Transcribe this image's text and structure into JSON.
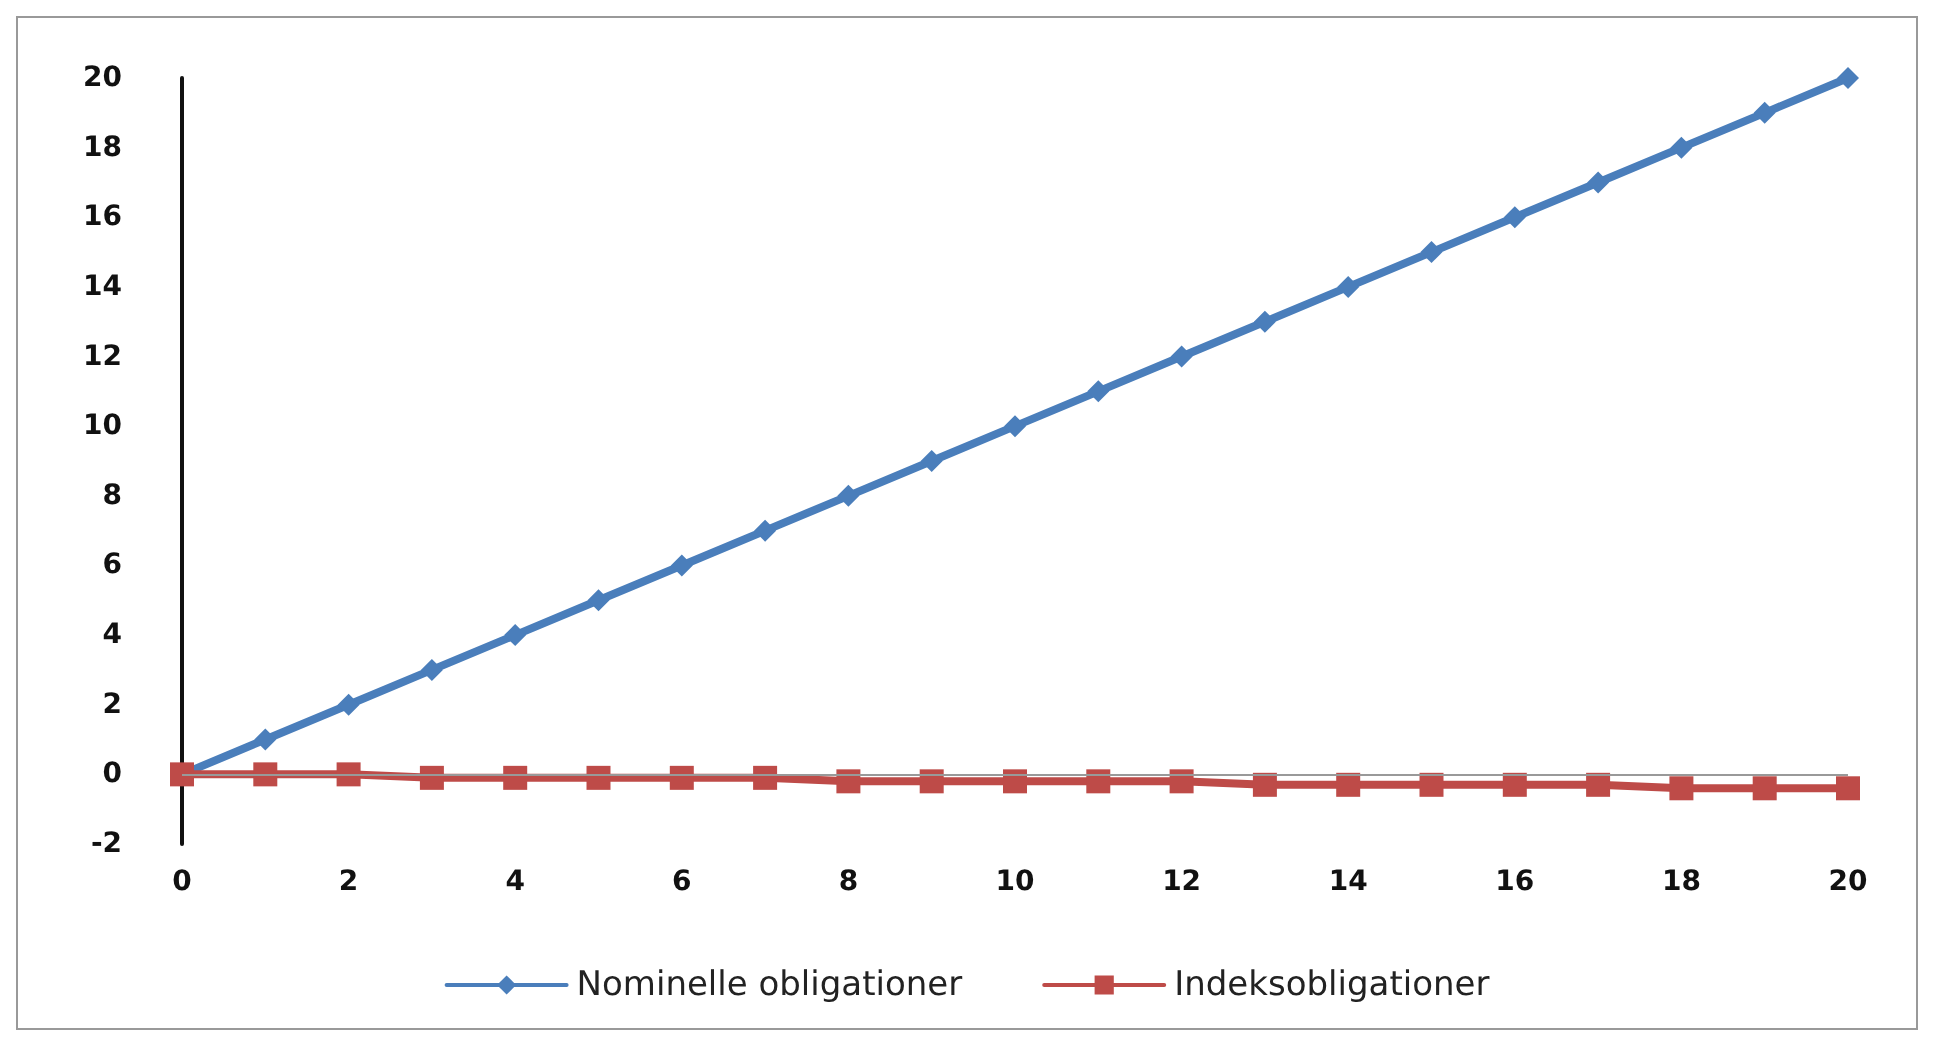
{
  "chart_data": {
    "type": "line",
    "x": [
      0,
      1,
      2,
      3,
      4,
      5,
      6,
      7,
      8,
      9,
      10,
      11,
      12,
      13,
      14,
      15,
      16,
      17,
      18,
      19,
      20
    ],
    "series": [
      {
        "name": "Nominelle obligationer",
        "color": "#4a7ebb",
        "marker": "diamond",
        "values": [
          0,
          1,
          2,
          3,
          4,
          5,
          6,
          7,
          8,
          9,
          10,
          11,
          12,
          13,
          14,
          15,
          16,
          17,
          18,
          19,
          20
        ]
      },
      {
        "name": "Indeksobligationer",
        "color": "#be4b48",
        "marker": "square",
        "values": [
          0,
          0,
          0,
          -0.1,
          -0.1,
          -0.1,
          -0.1,
          -0.1,
          -0.2,
          -0.2,
          -0.2,
          -0.2,
          -0.2,
          -0.3,
          -0.3,
          -0.3,
          -0.3,
          -0.3,
          -0.4,
          -0.4,
          -0.4
        ]
      }
    ],
    "xlim": [
      0,
      20
    ],
    "xticks": [
      0,
      2,
      4,
      6,
      8,
      10,
      12,
      14,
      16,
      18,
      20
    ],
    "ylim": [
      -2,
      20
    ],
    "yticks": [
      -2,
      0,
      2,
      4,
      6,
      8,
      10,
      12,
      14,
      16,
      18,
      20
    ],
    "ref_lines": [
      {
        "axis": "y",
        "value": 0,
        "color": "#999999"
      }
    ],
    "grid": false,
    "legend": "bottom",
    "line_style": "solid"
  }
}
